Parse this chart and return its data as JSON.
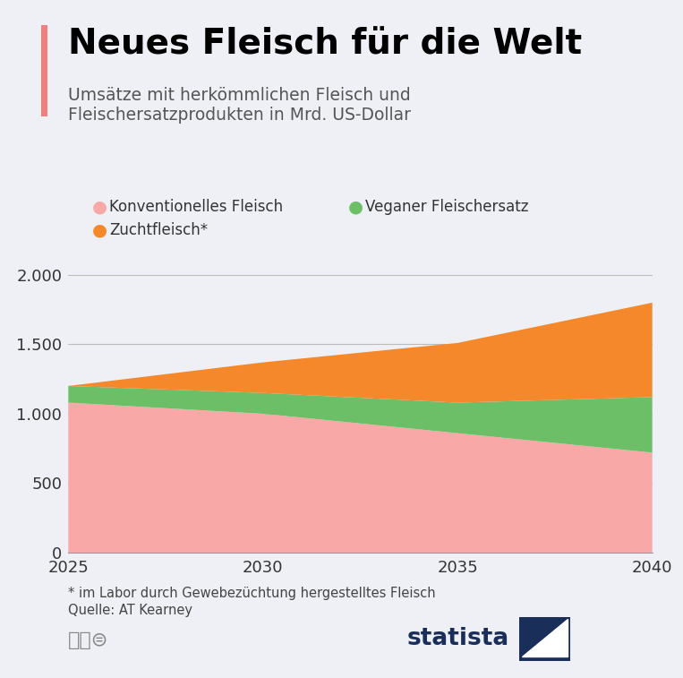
{
  "title": "Neues Fleisch für die Welt",
  "subtitle_line1": "Umsätze mit herkömmlichen Fleisch und",
  "subtitle_line2": "Fleischersatzprodukten in Mrd. US-Dollar",
  "footnote1": "* im Labor durch Gewebezüchtung hergestelltes Fleisch",
  "footnote2": "Quelle: AT Kearney",
  "years": [
    2025,
    2030,
    2035,
    2040
  ],
  "konventionell": [
    1080,
    1000,
    860,
    720
  ],
  "vegan": [
    120,
    150,
    220,
    400
  ],
  "zucht": [
    0,
    220,
    430,
    680
  ],
  "color_konventionell": "#f9a8a8",
  "color_vegan": "#6dbf67",
  "color_zucht": "#f4882a",
  "color_bg": "#eef0f5",
  "color_left_bar": "#f08080",
  "yticks": [
    0,
    500,
    1000,
    1500,
    2000
  ],
  "ylim": [
    0,
    2100
  ],
  "legend_konventionell": "Konventionelles Fleisch",
  "legend_vegan": "Veganer Fleischersatz",
  "legend_zucht": "Zuchtfleisch*",
  "statista_color": "#1a2e5a"
}
